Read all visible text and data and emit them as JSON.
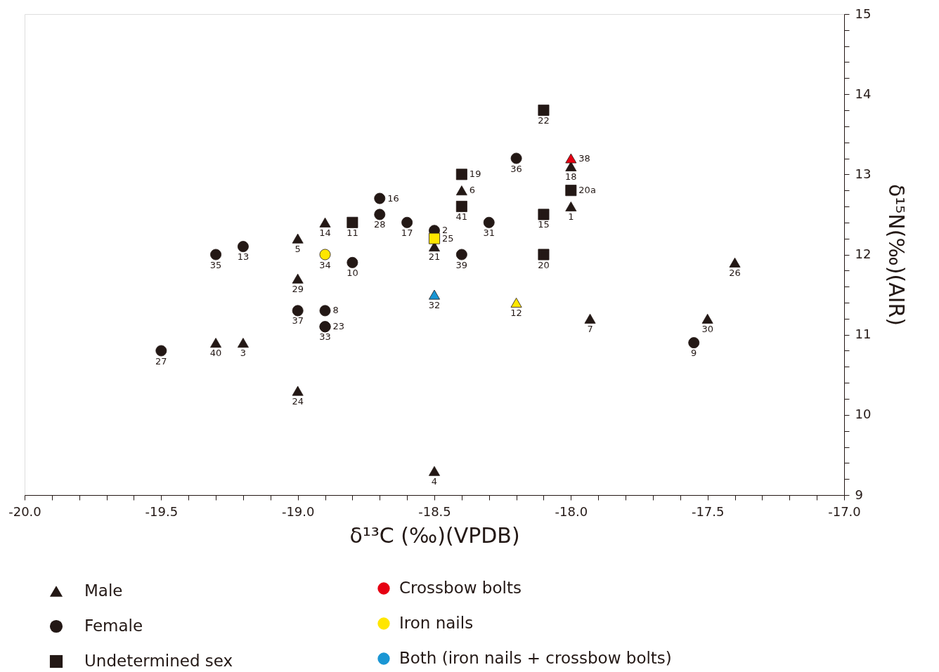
{
  "chart_data": {
    "type": "scatter",
    "xlabel": "δ¹³C (‰)(VPDB)",
    "ylabel": "δ¹⁵N(‰)(AIR)",
    "xlim": [
      -20,
      -17
    ],
    "ylim": [
      9,
      15
    ],
    "grid": false,
    "legend": "bottom",
    "xticks": [
      {
        "value": -20,
        "label": "-20.0"
      },
      {
        "value": -19.9,
        "label": null
      },
      {
        "value": -19.8,
        "label": null
      },
      {
        "value": -19.7,
        "label": null
      },
      {
        "value": -19.6,
        "label": null
      },
      {
        "value": -19.5,
        "label": "-19.5"
      },
      {
        "value": -19.4,
        "label": null
      },
      {
        "value": -19.3,
        "label": null
      },
      {
        "value": -19.2,
        "label": null
      },
      {
        "value": -19.1,
        "label": null
      },
      {
        "value": -19,
        "label": "-19.0"
      },
      {
        "value": -18.9,
        "label": null
      },
      {
        "value": -18.8,
        "label": null
      },
      {
        "value": -18.7,
        "label": null
      },
      {
        "value": -18.6,
        "label": null
      },
      {
        "value": -18.5,
        "label": "-18.5"
      },
      {
        "value": -18.4,
        "label": null
      },
      {
        "value": -18.3,
        "label": null
      },
      {
        "value": -18.2,
        "label": null
      },
      {
        "value": -18.1,
        "label": null
      },
      {
        "value": -18,
        "label": "-18.0"
      },
      {
        "value": -17.9,
        "label": null
      },
      {
        "value": -17.8,
        "label": null
      },
      {
        "value": -17.7,
        "label": null
      },
      {
        "value": -17.6,
        "label": null
      },
      {
        "value": -17.5,
        "label": "-17.5"
      },
      {
        "value": -17.4,
        "label": null
      },
      {
        "value": -17.3,
        "label": null
      },
      {
        "value": -17.2,
        "label": null
      },
      {
        "value": -17.1,
        "label": null
      },
      {
        "value": -17,
        "label": "-17.0"
      }
    ],
    "yticks": [
      9,
      {
        "value": 9.2,
        "label": null
      },
      {
        "value": 9.4,
        "label": null
      },
      {
        "value": 9.6,
        "label": null
      },
      {
        "value": 9.8,
        "label": null
      },
      10,
      {
        "value": 10.2,
        "label": null
      },
      {
        "value": 10.4,
        "label": null
      },
      {
        "value": 10.6,
        "label": null
      },
      {
        "value": 10.8,
        "label": null
      },
      11,
      {
        "value": 11.2,
        "label": null
      },
      {
        "value": 11.4,
        "label": null
      },
      {
        "value": 11.6,
        "label": null
      },
      {
        "value": 11.8,
        "label": null
      },
      12,
      {
        "value": 12.2,
        "label": null
      },
      {
        "value": 12.4,
        "label": null
      },
      {
        "value": 12.6,
        "label": null
      },
      {
        "value": 12.8,
        "label": null
      },
      13,
      {
        "value": 13.2,
        "label": null
      },
      {
        "value": 13.4,
        "label": null
      },
      {
        "value": 13.6,
        "label": null
      },
      {
        "value": 13.8,
        "label": null
      },
      14,
      {
        "value": 14.2,
        "label": null
      },
      {
        "value": 14.4,
        "label": null
      },
      {
        "value": 14.6,
        "label": null
      },
      {
        "value": 14.8,
        "label": null
      },
      15
    ],
    "series": [
      {
        "name": "Male",
        "color": "#231815",
        "marker": "triangle",
        "x": [
          -18.0,
          -19.2,
          -18.5,
          -19.0,
          -18.4,
          -17.93,
          -18.9,
          -18.0,
          -18.5,
          -19.0,
          -17.4,
          -19.0,
          -17.5,
          -19.3,
          -18.0,
          -18.2,
          -18.5
        ],
        "values": [
          12.6,
          10.9,
          9.3,
          12.2,
          12.8,
          11.2,
          12.4,
          13.1,
          12.1,
          10.3,
          11.9,
          11.7,
          11.2,
          10.9,
          13.2,
          11.4,
          11.5
        ],
        "colors": [
          "#231815",
          "#231815",
          "#231815",
          "#231815",
          "#231815",
          "#231815",
          "#231815",
          "#231815",
          "#231815",
          "#231815",
          "#231815",
          "#231815",
          "#231815",
          "#231815",
          "#e60012",
          "#ffe600",
          "#1a96d4"
        ]
      },
      {
        "name": "Female",
        "color": "#231815",
        "marker": "circle",
        "x": [
          -18.5,
          -18.9,
          -17.55,
          -18.8,
          -19.2,
          -18.7,
          -18.6,
          -18.9,
          -19.5,
          -18.7,
          -18.3,
          -18.9,
          -19.3,
          -18.2,
          -19.0,
          -18.4,
          -18.9
        ],
        "values": [
          12.3,
          11.3,
          10.9,
          11.9,
          12.1,
          12.7,
          12.4,
          11.1,
          10.8,
          12.5,
          12.4,
          11.1,
          12.0,
          13.2,
          11.3,
          12.0,
          12.0
        ],
        "colors": [
          "#231815",
          "#231815",
          "#231815",
          "#231815",
          "#231815",
          "#231815",
          "#231815",
          "#231815",
          "#231815",
          "#231815",
          "#231815",
          "#231815",
          "#231815",
          "#231815",
          "#231815",
          "#231815",
          "#ffe600"
        ]
      },
      {
        "name": "Undetermined sex",
        "color": "#231815",
        "marker": "square",
        "x": [
          -18.8,
          -18.1,
          -18.4,
          -18.1,
          -18.0,
          -18.1,
          -18.4,
          -18.5
        ],
        "values": [
          12.4,
          12.5,
          13.0,
          12.0,
          12.8,
          13.8,
          12.6,
          12.2
        ],
        "colors": [
          "#231815",
          "#231815",
          "#231815",
          "#231815",
          "#231815",
          "#231815",
          "#231815",
          "#ffe600"
        ]
      },
      {
        "name": "Crossbow bolts",
        "color": "#e60012",
        "marker": "circle"
      },
      {
        "name": "Iron nails",
        "color": "#ffe600",
        "marker": "circle"
      },
      {
        "name": "Both (iron nails + crossbow bolts)",
        "color": "#1a96d4",
        "marker": "circle"
      }
    ],
    "annotations": [
      {
        "text": "1",
        "x": -18.0,
        "y": 12.6
      },
      {
        "text": "3",
        "x": -19.2,
        "y": 10.9
      },
      {
        "text": "4",
        "x": -18.5,
        "y": 9.3
      },
      {
        "text": "5",
        "x": -19.0,
        "y": 12.2
      },
      {
        "text": "6",
        "x": -18.4,
        "y": 12.8
      },
      {
        "text": "7",
        "x": -17.93,
        "y": 11.2
      },
      {
        "text": "14",
        "x": -18.9,
        "y": 12.4
      },
      {
        "text": "18",
        "x": -18.0,
        "y": 13.1
      },
      {
        "text": "21",
        "x": -18.5,
        "y": 12.1
      },
      {
        "text": "24",
        "x": -19.0,
        "y": 10.3
      },
      {
        "text": "26",
        "x": -17.4,
        "y": 11.9
      },
      {
        "text": "29",
        "x": -19.0,
        "y": 11.7
      },
      {
        "text": "30",
        "x": -17.5,
        "y": 11.2
      },
      {
        "text": "40",
        "x": -19.3,
        "y": 10.9
      },
      {
        "text": "38",
        "x": -18.0,
        "y": 13.2
      },
      {
        "text": "12",
        "x": -18.2,
        "y": 11.4
      },
      {
        "text": "32",
        "x": -18.5,
        "y": 11.5
      },
      {
        "text": "2",
        "x": -18.5,
        "y": 12.3
      },
      {
        "text": "8",
        "x": -18.9,
        "y": 11.3
      },
      {
        "text": "9",
        "x": -17.55,
        "y": 10.9
      },
      {
        "text": "10",
        "x": -18.8,
        "y": 11.9
      },
      {
        "text": "13",
        "x": -19.2,
        "y": 12.1
      },
      {
        "text": "16",
        "x": -18.7,
        "y": 12.7
      },
      {
        "text": "17",
        "x": -18.6,
        "y": 12.4
      },
      {
        "text": "23",
        "x": -18.9,
        "y": 11.1
      },
      {
        "text": "27",
        "x": -19.5,
        "y": 10.8
      },
      {
        "text": "28",
        "x": -18.7,
        "y": 12.5
      },
      {
        "text": "31",
        "x": -18.3,
        "y": 12.4
      },
      {
        "text": "33",
        "x": -18.9,
        "y": 11.1
      },
      {
        "text": "35",
        "x": -19.3,
        "y": 12.0
      },
      {
        "text": "36",
        "x": -18.2,
        "y": 13.2
      },
      {
        "text": "37",
        "x": -19.0,
        "y": 11.3
      },
      {
        "text": "39",
        "x": -18.4,
        "y": 12.0
      },
      {
        "text": "34",
        "x": -18.9,
        "y": 12.0
      },
      {
        "text": "11",
        "x": -18.8,
        "y": 12.4
      },
      {
        "text": "15",
        "x": -18.1,
        "y": 12.5
      },
      {
        "text": "19",
        "x": -18.4,
        "y": 13.0
      },
      {
        "text": "20",
        "x": -18.1,
        "y": 12.0
      },
      {
        "text": "20a",
        "x": -18.0,
        "y": 12.8
      },
      {
        "text": "22",
        "x": -18.1,
        "y": 13.8
      },
      {
        "text": "41",
        "x": -18.4,
        "y": 12.6
      },
      {
        "text": "25",
        "x": -18.5,
        "y": 12.2
      }
    ]
  }
}
